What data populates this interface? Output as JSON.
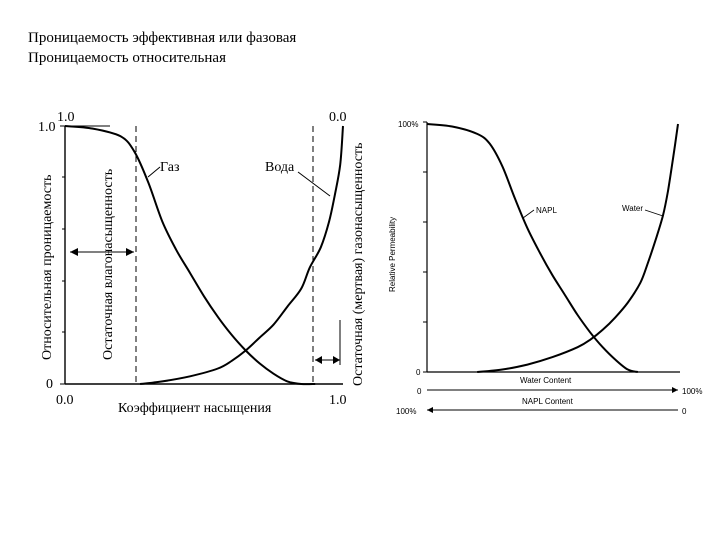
{
  "heading": {
    "line1": "Проницаемость эффективная или фазовая",
    "line2": "Проницаемость относительная"
  },
  "chart_data": [
    {
      "type": "line",
      "title": "",
      "xlabel": "Коэффициент насыщения",
      "ylabel": "Относительная проницаемость",
      "xlim": [
        0,
        1
      ],
      "ylim": [
        0,
        1
      ],
      "x_ticks": [
        "0.0",
        "1.0"
      ],
      "y_ticks": [
        "0",
        "1.0"
      ],
      "top_ticks": [
        "1.0",
        "0.0"
      ],
      "residual_water_label": "Остаточная влагонасыщенность",
      "residual_gas_label": "Остаточная (мертвая) газонасыщенность",
      "series": [
        {
          "name": "Газ",
          "x": [
            0.0,
            0.1,
            0.2,
            0.25,
            0.3,
            0.35,
            0.4,
            0.45,
            0.5,
            0.55,
            0.6,
            0.65,
            0.7,
            0.75,
            0.8,
            0.85,
            0.9
          ],
          "y": [
            1.0,
            0.99,
            0.96,
            0.9,
            0.78,
            0.63,
            0.52,
            0.43,
            0.34,
            0.26,
            0.19,
            0.13,
            0.08,
            0.04,
            0.01,
            0.0,
            0.0
          ]
        },
        {
          "name": "Вода",
          "x": [
            0.27,
            0.35,
            0.45,
            0.55,
            0.6,
            0.65,
            0.7,
            0.75,
            0.8,
            0.85,
            0.88,
            0.92,
            0.95,
            0.97,
            0.99,
            1.0
          ],
          "y": [
            0.0,
            0.01,
            0.03,
            0.06,
            0.09,
            0.13,
            0.18,
            0.23,
            0.3,
            0.37,
            0.45,
            0.53,
            0.63,
            0.73,
            0.85,
            1.0
          ]
        }
      ]
    },
    {
      "type": "line",
      "title": "",
      "xlabel": "Water Content",
      "xlabel2": "NAPL Content",
      "ylabel": "Relative Permeability",
      "xlim": [
        0,
        100
      ],
      "ylim": [
        0,
        100
      ],
      "x_ticks": [
        "0",
        "100%"
      ],
      "x2_ticks": [
        "100%",
        "0"
      ],
      "y_ticks": [
        "0",
        "100%"
      ],
      "series": [
        {
          "name": "NAPL",
          "x": [
            0,
            10,
            20,
            25,
            30,
            35,
            40,
            45,
            50,
            55,
            60,
            65,
            70,
            75,
            80,
            84
          ],
          "y": [
            100,
            99,
            96,
            92,
            83,
            70,
            58,
            48,
            39,
            31,
            23,
            16,
            10,
            5,
            1,
            0
          ]
        },
        {
          "name": "Water",
          "x": [
            20,
            30,
            40,
            50,
            60,
            65,
            70,
            75,
            80,
            85,
            88,
            91,
            94,
            96,
            98,
            100
          ],
          "y": [
            0,
            1,
            3,
            6,
            10,
            13,
            17,
            22,
            28,
            36,
            44,
            53,
            63,
            73,
            86,
            100
          ]
        }
      ]
    }
  ]
}
